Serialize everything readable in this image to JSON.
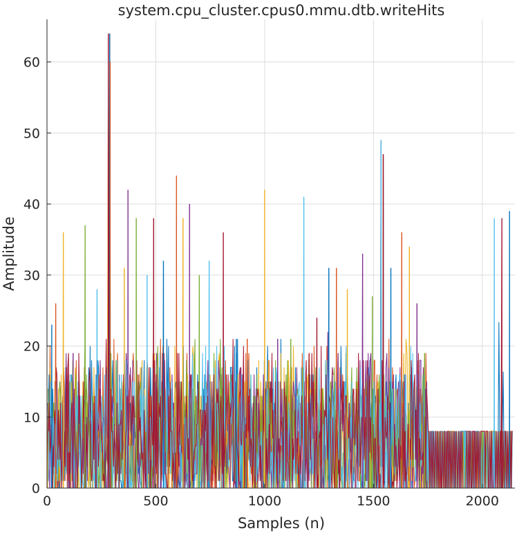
{
  "chart_data": {
    "type": "line",
    "title": "system.cpu_cluster.cpus0.mmu.dtb.writeHits",
    "xlabel": "Samples (n)",
    "ylabel": "Amplitude",
    "xlim": [
      0,
      2150
    ],
    "ylim": [
      0,
      66
    ],
    "xticks": [
      0,
      500,
      1000,
      1500,
      2000
    ],
    "yticks": [
      0,
      10,
      20,
      30,
      40,
      50,
      60
    ],
    "grid": true,
    "series_colors": [
      "#0072BD",
      "#D95319",
      "#EDB120",
      "#7E2F8E",
      "#77AC30",
      "#4DBEEE",
      "#A2142F"
    ],
    "peaks": [
      {
        "x": 22,
        "y": 23
      },
      {
        "x": 40,
        "y": 26
      },
      {
        "x": 75,
        "y": 36
      },
      {
        "x": 120,
        "y": 19
      },
      {
        "x": 175,
        "y": 37
      },
      {
        "x": 230,
        "y": 28
      },
      {
        "x": 282,
        "y": 64
      },
      {
        "x": 288,
        "y": 64
      },
      {
        "x": 290,
        "y": 60
      },
      {
        "x": 355,
        "y": 31
      },
      {
        "x": 372,
        "y": 42
      },
      {
        "x": 410,
        "y": 38
      },
      {
        "x": 460,
        "y": 30
      },
      {
        "x": 490,
        "y": 38
      },
      {
        "x": 535,
        "y": 32
      },
      {
        "x": 595,
        "y": 44
      },
      {
        "x": 625,
        "y": 38
      },
      {
        "x": 655,
        "y": 40
      },
      {
        "x": 700,
        "y": 30
      },
      {
        "x": 745,
        "y": 32
      },
      {
        "x": 810,
        "y": 36
      },
      {
        "x": 870,
        "y": 21
      },
      {
        "x": 920,
        "y": 21
      },
      {
        "x": 1000,
        "y": 42
      },
      {
        "x": 1060,
        "y": 21
      },
      {
        "x": 1120,
        "y": 21
      },
      {
        "x": 1180,
        "y": 41
      },
      {
        "x": 1240,
        "y": 24
      },
      {
        "x": 1295,
        "y": 31
      },
      {
        "x": 1330,
        "y": 31
      },
      {
        "x": 1380,
        "y": 28
      },
      {
        "x": 1450,
        "y": 33
      },
      {
        "x": 1495,
        "y": 27
      },
      {
        "x": 1535,
        "y": 49
      },
      {
        "x": 1545,
        "y": 47
      },
      {
        "x": 1580,
        "y": 31
      },
      {
        "x": 1630,
        "y": 36
      },
      {
        "x": 1665,
        "y": 34
      },
      {
        "x": 1700,
        "y": 26
      },
      {
        "x": 1735,
        "y": 19
      },
      {
        "x": 2055,
        "y": 38
      },
      {
        "x": 2090,
        "y": 38
      },
      {
        "x": 2125,
        "y": 39
      }
    ],
    "plateau": {
      "x_start": 1750,
      "x_end": 2140,
      "y": 8
    },
    "typical_range": [
      0,
      22
    ]
  }
}
